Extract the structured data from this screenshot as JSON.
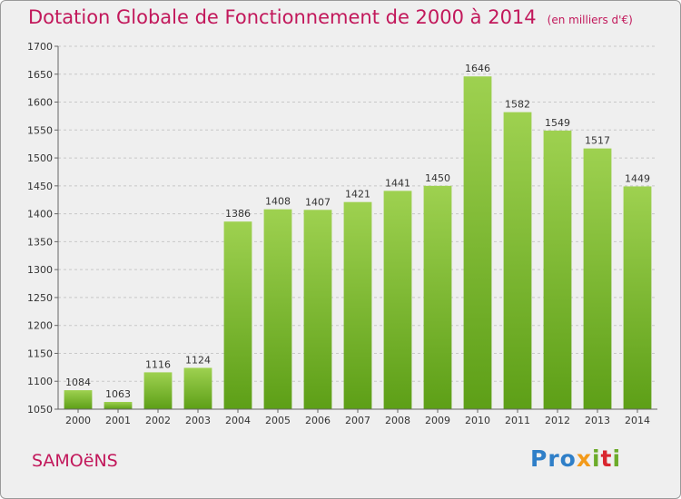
{
  "header": {
    "title": "Dotation Globale de Fonctionnement de 2000 à 2014",
    "subtitle": "(en milliers d'€)"
  },
  "footer": {
    "town": "SAMOëNS",
    "logo": {
      "p1": "Pro",
      "p2": "x",
      "p3": "i",
      "p4": "t",
      "p5": "i"
    }
  },
  "colors": {
    "title": "#c2185b",
    "bar_light": "#9ed150",
    "bar_dark": "#5d9f17",
    "grid": "#c8c8c8",
    "background": "#efefef"
  },
  "chart_data": {
    "type": "bar",
    "title": "Dotation Globale de Fonctionnement de 2000 à 2014",
    "subtitle": "(en milliers d'€)",
    "categories": [
      "2000",
      "2001",
      "2002",
      "2003",
      "2004",
      "2005",
      "2006",
      "2007",
      "2008",
      "2009",
      "2010",
      "2011",
      "2012",
      "2013",
      "2014"
    ],
    "values": [
      1084,
      1063,
      1116,
      1124,
      1386,
      1408,
      1407,
      1421,
      1441,
      1450,
      1646,
      1582,
      1549,
      1517,
      1449
    ],
    "ylim": [
      1050,
      1700
    ],
    "yticks": [
      1050,
      1100,
      1150,
      1200,
      1250,
      1300,
      1350,
      1400,
      1450,
      1500,
      1550,
      1600,
      1650,
      1700
    ],
    "grid": "dashed horizontal",
    "data_labels": true
  }
}
